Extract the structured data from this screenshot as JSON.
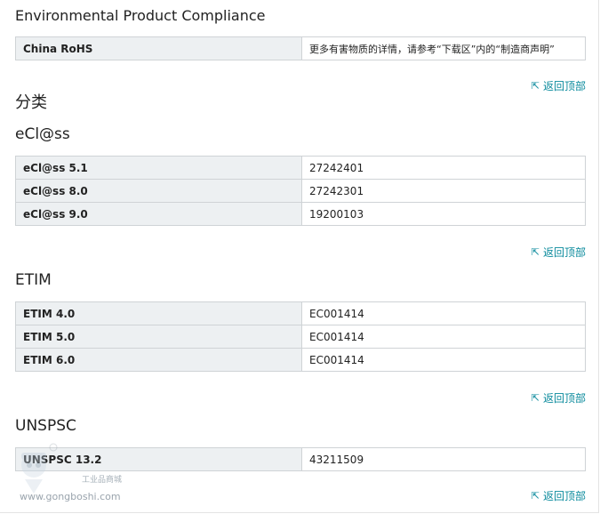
{
  "env": {
    "title": "Environmental Product Compliance",
    "rows": [
      {
        "key": "China RoHS",
        "value": "更多有害物质的详情，请参考“下载区”内的“制造商声明”"
      }
    ]
  },
  "classification": {
    "title": "分类"
  },
  "eclass": {
    "title": "eCl@ss",
    "rows": [
      {
        "key": "eCl@ss 5.1",
        "value": "27242401"
      },
      {
        "key": "eCl@ss 8.0",
        "value": "27242301"
      },
      {
        "key": "eCl@ss 9.0",
        "value": "19200103"
      }
    ]
  },
  "etim": {
    "title": "ETIM",
    "rows": [
      {
        "key": "ETIM 4.0",
        "value": "EC001414"
      },
      {
        "key": "ETIM 5.0",
        "value": "EC001414"
      },
      {
        "key": "ETIM 6.0",
        "value": "EC001414"
      }
    ]
  },
  "unspsc": {
    "title": "UNSPSC",
    "rows": [
      {
        "key": "UNSPSC 13.2",
        "value": "43211509"
      }
    ]
  },
  "back_to_top": "返回顶部",
  "watermark": {
    "url": "www.gongboshi.com",
    "sub": "工业品商城"
  },
  "colors": {
    "link": "#0a8a9c",
    "key_bg": "#edf0f2",
    "border": "#cfd3d6"
  },
  "icons": {
    "back_to_top": "arrow-up-left-icon"
  }
}
